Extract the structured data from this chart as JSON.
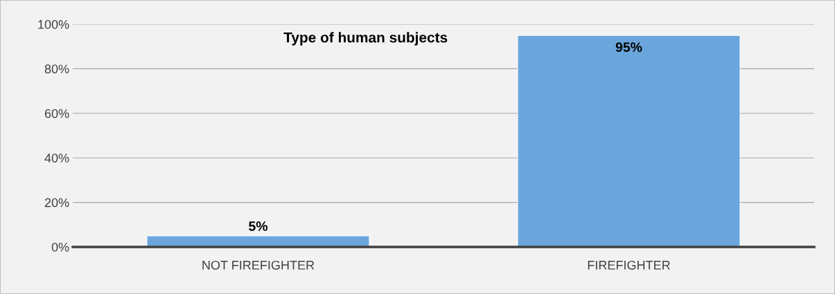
{
  "chart_data": {
    "type": "bar",
    "title": "Type of human subjects",
    "categories": [
      "NOT FIREFIGHTER",
      "FIREFIGHTER"
    ],
    "values": [
      5,
      95
    ],
    "value_labels": [
      "5%",
      "95%"
    ],
    "color": "#6aa6dc",
    "ylim": [
      0,
      100
    ],
    "yticks": [
      {
        "value": 0,
        "label": "0%"
      },
      {
        "value": 20,
        "label": "20%"
      },
      {
        "value": 40,
        "label": "40%"
      },
      {
        "value": 60,
        "label": "60%"
      },
      {
        "value": 80,
        "label": "80%"
      },
      {
        "value": 100,
        "label": "100%"
      }
    ],
    "grid": "y",
    "legend": false
  }
}
